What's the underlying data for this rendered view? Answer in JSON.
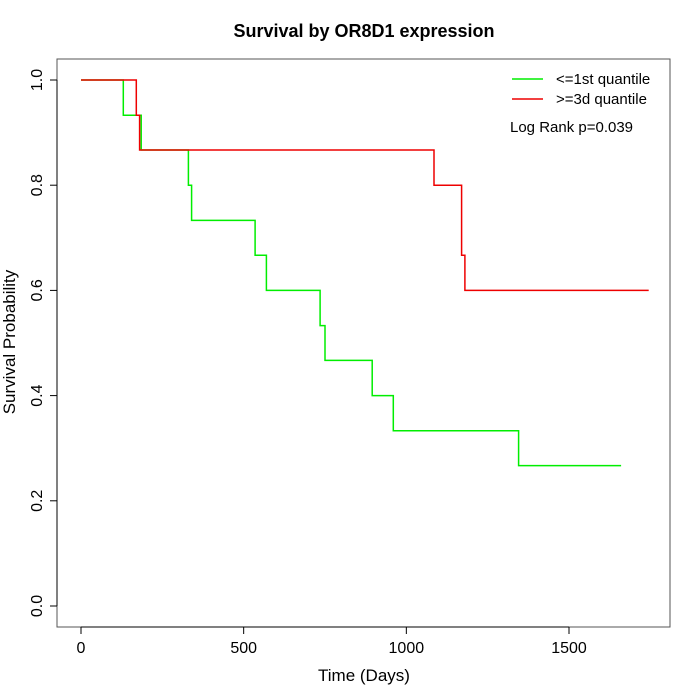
{
  "chart_data": {
    "type": "line",
    "subtype": "kaplan-meier step",
    "title": "Survival by OR8D1 expression",
    "xlabel": "Time (Days)",
    "ylabel": "Survival Probability",
    "xlim": [
      0,
      1750
    ],
    "ylim": [
      0,
      1
    ],
    "x_ticks": [
      0,
      500,
      1000,
      1500
    ],
    "y_ticks": [
      0.0,
      0.2,
      0.4,
      0.6,
      0.8,
      1.0
    ],
    "x_tick_labels": [
      "0",
      "500",
      "1000",
      "1500"
    ],
    "y_tick_labels": [
      "0.0",
      "0.2",
      "0.4",
      "0.6",
      "0.8",
      "1.0"
    ],
    "grid": false,
    "legend_position": "top-right",
    "annotation": "Log Rank p=0.039",
    "series": [
      {
        "name": "<=1st quantile",
        "color": "#00ee00",
        "x": [
          0,
          130,
          130,
          185,
          185,
          330,
          330,
          340,
          340,
          535,
          535,
          570,
          570,
          735,
          735,
          750,
          750,
          895,
          895,
          960,
          960,
          1345,
          1345,
          1660
        ],
        "y": [
          1.0,
          1.0,
          0.933,
          0.933,
          0.867,
          0.867,
          0.8,
          0.8,
          0.733,
          0.733,
          0.667,
          0.667,
          0.6,
          0.6,
          0.533,
          0.533,
          0.467,
          0.467,
          0.4,
          0.4,
          0.333,
          0.333,
          0.267,
          0.267
        ]
      },
      {
        "name": ">=3d quantile",
        "color": "#ee0000",
        "x": [
          0,
          170,
          170,
          180,
          180,
          1085,
          1085,
          1170,
          1170,
          1180,
          1180,
          1745
        ],
        "y": [
          1.0,
          1.0,
          0.933,
          0.933,
          0.867,
          0.867,
          0.8,
          0.8,
          0.667,
          0.667,
          0.6,
          0.6
        ]
      }
    ]
  }
}
